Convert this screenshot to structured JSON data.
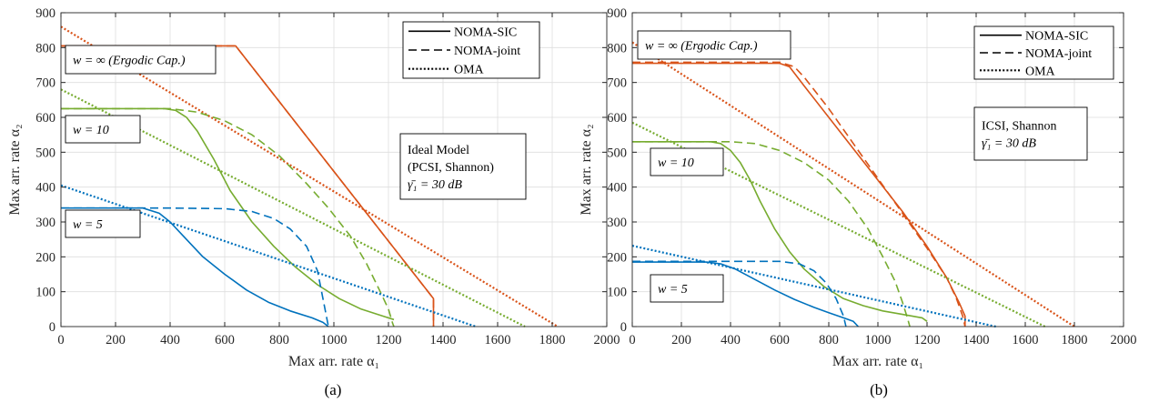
{
  "colors": {
    "w_inf": "#D95319",
    "w_10": "#77AC30",
    "w_5": "#0072BD",
    "axis": "#262626",
    "grid": "#dedede"
  },
  "legend": {
    "entries": [
      {
        "label": "NOMA-SIC",
        "style": "solid"
      },
      {
        "label": "NOMA-joint",
        "style": "dashed"
      },
      {
        "label": "OMA",
        "style": "dotted"
      }
    ]
  },
  "chart_data": [
    {
      "type": "line",
      "caption": "(a)",
      "xlabel": "Max arr. rate α₁",
      "ylabel": "Max arr. rate α₂",
      "xlim": [
        0,
        2000
      ],
      "ylim": [
        0,
        900
      ],
      "xticks": [
        0,
        200,
        400,
        600,
        800,
        1000,
        1200,
        1400,
        1600,
        1800,
        2000
      ],
      "yticks": [
        0,
        100,
        200,
        300,
        400,
        500,
        600,
        700,
        800,
        900
      ],
      "grid": true,
      "legend_position": "top-right",
      "annotations": [
        {
          "lines": [
            "Ideal Model",
            "(PCSI, Shannon)",
            "γ̄₁ = 30 dB"
          ],
          "position": "right"
        },
        {
          "lines": [
            "w = ∞ (Ergodic Cap.)"
          ],
          "position": "top-left"
        },
        {
          "lines": [
            "w = 10"
          ],
          "position": "upper-left"
        },
        {
          "lines": [
            "w = 5"
          ],
          "position": "left"
        }
      ],
      "series": [
        {
          "name": "w = ∞ NOMA-SIC",
          "group": "w_inf",
          "style": "solid",
          "x": [
            0,
            640,
            1365,
            1365
          ],
          "y": [
            805,
            805,
            80,
            0
          ]
        },
        {
          "name": "w = ∞ NOMA-joint",
          "group": "w_inf",
          "style": "dashed",
          "x": [
            0,
            640,
            1365,
            1365
          ],
          "y": [
            805,
            805,
            80,
            0
          ]
        },
        {
          "name": "w = ∞ OMA",
          "group": "w_inf",
          "style": "dotted",
          "x": [
            0,
            1820
          ],
          "y": [
            860,
            0
          ]
        },
        {
          "name": "w = 10 NOMA-SIC",
          "group": "w_10",
          "style": "solid",
          "x": [
            0,
            380,
            420,
            460,
            500,
            560,
            620,
            700,
            780,
            860,
            940,
            1020,
            1100,
            1180,
            1220
          ],
          "y": [
            625,
            625,
            620,
            600,
            560,
            480,
            390,
            300,
            230,
            170,
            120,
            80,
            50,
            30,
            20
          ]
        },
        {
          "name": "w = 10 NOMA-joint",
          "group": "w_10",
          "style": "dashed",
          "x": [
            0,
            400,
            500,
            600,
            700,
            800,
            900,
            980,
            1060,
            1120,
            1170,
            1200,
            1215,
            1220
          ],
          "y": [
            625,
            625,
            615,
            590,
            550,
            490,
            410,
            340,
            260,
            180,
            100,
            50,
            10,
            0
          ]
        },
        {
          "name": "w = 10 OMA",
          "group": "w_10",
          "style": "dotted",
          "x": [
            0,
            1700
          ],
          "y": [
            680,
            0
          ]
        },
        {
          "name": "w = 5 NOMA-SIC",
          "group": "w_5",
          "style": "solid",
          "x": [
            0,
            300,
            360,
            400,
            460,
            520,
            600,
            680,
            760,
            840,
            920,
            960,
            980
          ],
          "y": [
            340,
            340,
            325,
            300,
            250,
            200,
            150,
            105,
            70,
            45,
            25,
            12,
            0
          ]
        },
        {
          "name": "w = 5 NOMA-joint",
          "group": "w_5",
          "style": "dashed",
          "x": [
            0,
            400,
            600,
            700,
            780,
            840,
            900,
            940,
            960,
            980
          ],
          "y": [
            340,
            340,
            338,
            330,
            310,
            280,
            230,
            160,
            80,
            0
          ]
        },
        {
          "name": "w = 5 OMA",
          "group": "w_5",
          "style": "dotted",
          "x": [
            0,
            1520
          ],
          "y": [
            405,
            0
          ]
        }
      ]
    },
    {
      "type": "line",
      "caption": "(b)",
      "xlabel": "Max arr. rate α₁",
      "ylabel": "Max arr. rate α₂",
      "xlim": [
        0,
        2000
      ],
      "ylim": [
        0,
        900
      ],
      "xticks": [
        0,
        200,
        400,
        600,
        800,
        1000,
        1200,
        1400,
        1600,
        1800,
        2000
      ],
      "yticks": [
        0,
        100,
        200,
        300,
        400,
        500,
        600,
        700,
        800,
        900
      ],
      "grid": true,
      "legend_position": "top-right",
      "annotations": [
        {
          "lines": [
            "ICSI, Shannon",
            "γ̄₁ = 30 dB"
          ],
          "position": "right"
        },
        {
          "lines": [
            "w = ∞ (Ergodic Cap.)"
          ],
          "position": "top-left"
        },
        {
          "lines": [
            "w = 10"
          ],
          "position": "upper-left"
        },
        {
          "lines": [
            "w = 5"
          ],
          "position": "left"
        }
      ],
      "series": [
        {
          "name": "w = ∞ NOMA-SIC",
          "group": "w_inf",
          "style": "solid",
          "x": [
            0,
            600,
            640,
            700,
            800,
            900,
            1000,
            1100,
            1200,
            1280,
            1330,
            1355,
            1355
          ],
          "y": [
            755,
            755,
            745,
            690,
            600,
            510,
            420,
            330,
            230,
            140,
            70,
            30,
            0
          ]
        },
        {
          "name": "w = ∞ NOMA-joint",
          "group": "w_inf",
          "style": "dashed",
          "x": [
            0,
            600,
            660,
            700,
            800,
            900,
            1000,
            1100,
            1200,
            1280,
            1320,
            1345,
            1355
          ],
          "y": [
            758,
            758,
            745,
            715,
            625,
            525,
            425,
            325,
            225,
            140,
            80,
            30,
            0
          ]
        },
        {
          "name": "w = ∞ OMA",
          "group": "w_inf",
          "style": "dotted",
          "x": [
            0,
            1800
          ],
          "y": [
            815,
            0
          ]
        },
        {
          "name": "w = 10 NOMA-SIC",
          "group": "w_10",
          "style": "solid",
          "x": [
            0,
            320,
            360,
            400,
            440,
            480,
            520,
            580,
            640,
            700,
            780,
            860,
            940,
            1020,
            1100,
            1180,
            1200
          ],
          "y": [
            530,
            530,
            525,
            505,
            470,
            420,
            360,
            280,
            215,
            165,
            115,
            80,
            60,
            45,
            35,
            25,
            15
          ]
        },
        {
          "name": "w = 10 NOMA-joint",
          "group": "w_10",
          "style": "dashed",
          "x": [
            0,
            400,
            500,
            600,
            700,
            800,
            880,
            960,
            1020,
            1070,
            1100,
            1120,
            1130
          ],
          "y": [
            530,
            530,
            525,
            505,
            470,
            420,
            360,
            280,
            200,
            130,
            70,
            25,
            0
          ]
        },
        {
          "name": "w = 10 OMA",
          "group": "w_10",
          "style": "dotted",
          "x": [
            0,
            1680
          ],
          "y": [
            585,
            0
          ]
        },
        {
          "name": "w = 5 NOMA-SIC",
          "group": "w_5",
          "style": "solid",
          "x": [
            0,
            300,
            360,
            420,
            500,
            580,
            660,
            740,
            800,
            860,
            900,
            920
          ],
          "y": [
            185,
            185,
            180,
            165,
            135,
            105,
            78,
            55,
            40,
            25,
            15,
            0
          ]
        },
        {
          "name": "w = 5 NOMA-joint",
          "group": "w_5",
          "style": "dashed",
          "x": [
            0,
            600,
            680,
            740,
            790,
            830,
            860,
            870
          ],
          "y": [
            187,
            187,
            180,
            160,
            125,
            80,
            30,
            0
          ]
        },
        {
          "name": "w = 5 OMA",
          "group": "w_5",
          "style": "dotted",
          "x": [
            0,
            1480
          ],
          "y": [
            232,
            0
          ]
        }
      ]
    }
  ]
}
